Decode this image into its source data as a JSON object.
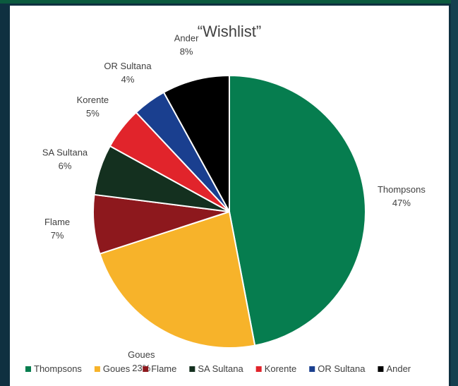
{
  "chart_data": {
    "type": "pie",
    "title": "“Wishlist”",
    "legend_position": "bottom",
    "slices": [
      {
        "name": "Thompsons",
        "value": 47,
        "label": "47%",
        "color": "#067d4f"
      },
      {
        "name": "Goues",
        "value": 23,
        "label": "23%",
        "color": "#f7b32a"
      },
      {
        "name": "Flame",
        "value": 7,
        "label": "7%",
        "color": "#8d181d"
      },
      {
        "name": "SA Sultana",
        "value": 6,
        "label": "6%",
        "color": "#14301f"
      },
      {
        "name": "Korente",
        "value": 5,
        "label": "5%",
        "color": "#e1242b"
      },
      {
        "name": "OR Sultana",
        "value": 4,
        "label": "4%",
        "color": "#1a3f8f"
      },
      {
        "name": "Ander",
        "value": 8,
        "label": "8%",
        "color": "#000000"
      }
    ]
  }
}
